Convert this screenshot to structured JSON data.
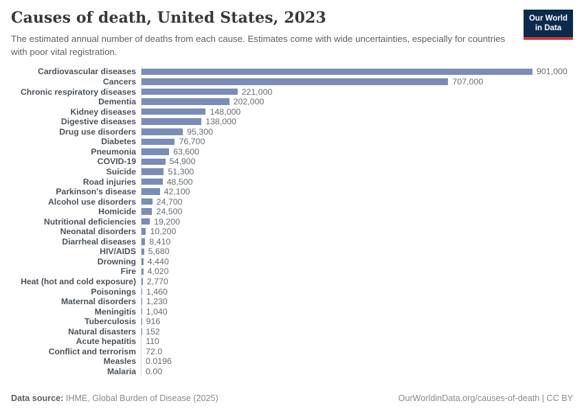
{
  "header": {
    "title": "Causes of death, United States, 2023",
    "subtitle": "The estimated annual number of deaths from each cause. Estimates come with wide uncertainties, especially for countries with poor vital registration.",
    "logo": {
      "line1": "Our World",
      "line2": "in Data"
    }
  },
  "chart_data": {
    "type": "bar",
    "orientation": "horizontal",
    "title": "Causes of death, United States, 2023",
    "xlabel": "",
    "ylabel": "",
    "xlim": [
      0,
      901000
    ],
    "grid": false,
    "legend": "none",
    "bar_color": "#7a8db8",
    "categories": [
      "Cardiovascular diseases",
      "Cancers",
      "Chronic respiratory diseases",
      "Dementia",
      "Kidney diseases",
      "Digestive diseases",
      "Drug use disorders",
      "Diabetes",
      "Pneumonia",
      "COVID-19",
      "Suicide",
      "Road injuries",
      "Parkinson's disease",
      "Alcohol use disorders",
      "Homicide",
      "Nutritional deficiencies",
      "Neonatal disorders",
      "Diarrheal diseases",
      "HIV/AIDS",
      "Drowning",
      "Fire",
      "Heat (hot and cold exposure)",
      "Poisonings",
      "Maternal disorders",
      "Meningitis",
      "Tuberculosis",
      "Natural disasters",
      "Acute hepatitis",
      "Conflict and terrorism",
      "Measles",
      "Malaria"
    ],
    "values": [
      901000,
      707000,
      221000,
      202000,
      148000,
      138000,
      95300,
      76700,
      63600,
      54900,
      51300,
      48500,
      42100,
      24700,
      24500,
      19200,
      10200,
      8410,
      5680,
      4440,
      4020,
      2770,
      1460,
      1230,
      1040,
      916,
      152,
      110,
      72.0,
      0.0196,
      0.0
    ],
    "value_labels": [
      "901,000",
      "707,000",
      "221,000",
      "202,000",
      "148,000",
      "138,000",
      "95,300",
      "76,700",
      "63,600",
      "54,900",
      "51,300",
      "48,500",
      "42,100",
      "24,700",
      "24,500",
      "19,200",
      "10,200",
      "8,410",
      "5,680",
      "4,440",
      "4,020",
      "2,770",
      "1,460",
      "1,230",
      "1,040",
      "916",
      "152",
      "110",
      "72.0",
      "0.0196",
      "0.00"
    ]
  },
  "footer": {
    "datasource_label": "Data source:",
    "datasource_value": " IHME, Global Burden of Disease (2025)",
    "link": "OurWorldinData.org/causes-of-death | CC BY"
  },
  "colors": {
    "bar": "#7a8db8",
    "axis_line": "#d9dcde",
    "title_text": "#383838",
    "subtitle_text": "#5b6166",
    "category_text": "#4c5359",
    "value_text": "#666c71",
    "logo_navy": "#0c2a4e",
    "logo_red": "#ca3a34"
  }
}
